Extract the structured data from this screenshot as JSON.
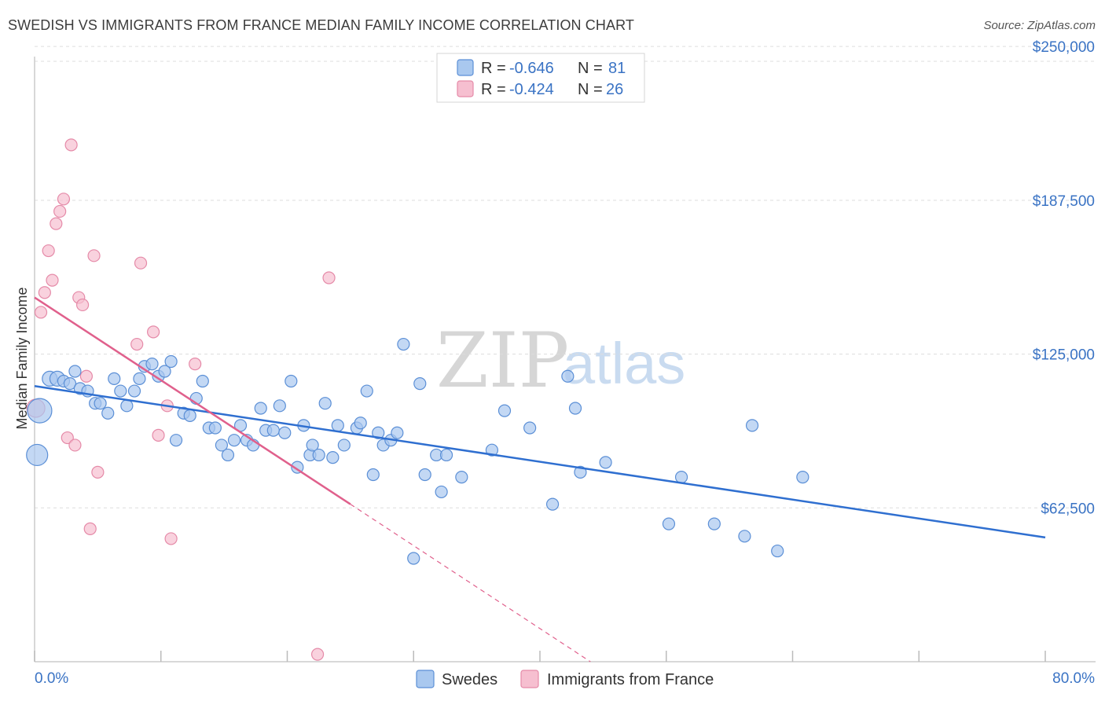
{
  "header": {
    "title": "SWEDISH VS IMMIGRANTS FROM FRANCE MEDIAN FAMILY INCOME CORRELATION CHART",
    "source": "Source: ZipAtlas.com"
  },
  "watermark": {
    "zip": "ZIP",
    "atlas": "atlas"
  },
  "colors": {
    "swedes_fill": "#a9c8ef",
    "swedes_stroke": "#5b8fd6",
    "swedes_line": "#2f6fd0",
    "france_fill": "#f6bfd0",
    "france_stroke": "#e58aa8",
    "france_line": "#e0608c",
    "accent_text": "#3a73c4",
    "grid": "#dddddd"
  },
  "legend_top": [
    {
      "r_label": "R =",
      "r_value": "-0.646",
      "n_label": "N =",
      "n_value": "81"
    },
    {
      "r_label": "R =",
      "r_value": "-0.424",
      "n_label": "N =",
      "n_value": "26"
    }
  ],
  "chart_data": {
    "type": "scatter",
    "title": "SWEDISH VS IMMIGRANTS FROM FRANCE MEDIAN FAMILY INCOME CORRELATION CHART",
    "xlabel": "",
    "ylabel": "Median Family Income",
    "xlim": [
      0,
      80
    ],
    "ylim": [
      0,
      262500
    ],
    "x_tick_labels": [
      "0.0%",
      "80.0%"
    ],
    "y_ticks": [
      62500,
      125000,
      187500,
      250000
    ],
    "y_tick_labels": [
      "$62,500",
      "$125,000",
      "$187,500",
      "$250,000"
    ],
    "grid": true,
    "legend_position": "bottom-center",
    "series": [
      {
        "name": "Swedes",
        "r": -0.646,
        "n": 81,
        "trend": {
          "x": [
            0,
            80
          ],
          "y": [
            112000,
            50500
          ]
        },
        "points": [
          [
            0.2,
            84000,
            26
          ],
          [
            0.4,
            102000,
            30
          ],
          [
            1.2,
            115000,
            18
          ],
          [
            1.8,
            115000,
            18
          ],
          [
            2.3,
            114000,
            14
          ],
          [
            2.8,
            113000,
            14
          ],
          [
            3.2,
            118000,
            14
          ],
          [
            3.6,
            111000,
            14
          ],
          [
            4.2,
            110000,
            14
          ],
          [
            4.8,
            105000,
            14
          ],
          [
            5.2,
            105000,
            14
          ],
          [
            5.8,
            101000,
            14
          ],
          [
            6.3,
            115000,
            14
          ],
          [
            6.8,
            110000,
            14
          ],
          [
            7.3,
            104000,
            14
          ],
          [
            7.9,
            110000,
            14
          ],
          [
            8.3,
            115000,
            14
          ],
          [
            8.7,
            120000,
            14
          ],
          [
            9.3,
            121000,
            14
          ],
          [
            9.8,
            116000,
            14
          ],
          [
            10.3,
            118000,
            14
          ],
          [
            10.8,
            122000,
            14
          ],
          [
            11.2,
            90000,
            14
          ],
          [
            11.8,
            101000,
            14
          ],
          [
            12.3,
            100000,
            14
          ],
          [
            12.8,
            107000,
            14
          ],
          [
            13.3,
            114000,
            14
          ],
          [
            13.8,
            95000,
            14
          ],
          [
            14.3,
            95000,
            14
          ],
          [
            14.8,
            88000,
            14
          ],
          [
            15.3,
            84000,
            14
          ],
          [
            15.8,
            90000,
            14
          ],
          [
            16.3,
            96000,
            14
          ],
          [
            16.8,
            90000,
            14
          ],
          [
            17.3,
            88000,
            14
          ],
          [
            17.9,
            103000,
            14
          ],
          [
            18.3,
            94000,
            14
          ],
          [
            18.9,
            94000,
            14
          ],
          [
            19.4,
            104000,
            14
          ],
          [
            19.8,
            93000,
            14
          ],
          [
            20.3,
            114000,
            14
          ],
          [
            20.8,
            79000,
            14
          ],
          [
            21.3,
            96000,
            14
          ],
          [
            21.8,
            84000,
            14
          ],
          [
            22.0,
            88000,
            14
          ],
          [
            22.5,
            84000,
            14
          ],
          [
            23.0,
            105000,
            14
          ],
          [
            23.6,
            83000,
            14
          ],
          [
            24.0,
            96000,
            14
          ],
          [
            24.5,
            88000,
            14
          ],
          [
            25.5,
            95000,
            14
          ],
          [
            25.8,
            97000,
            14
          ],
          [
            26.3,
            110000,
            14
          ],
          [
            26.8,
            76000,
            14
          ],
          [
            27.2,
            93000,
            14
          ],
          [
            27.6,
            88000,
            14
          ],
          [
            28.2,
            90000,
            14
          ],
          [
            28.7,
            93000,
            14
          ],
          [
            29.2,
            129000,
            14
          ],
          [
            30.0,
            42000,
            14
          ],
          [
            30.5,
            113000,
            14
          ],
          [
            30.9,
            76000,
            14
          ],
          [
            31.8,
            84000,
            14
          ],
          [
            32.2,
            69000,
            14
          ],
          [
            32.6,
            84000,
            14
          ],
          [
            33.8,
            75000,
            14
          ],
          [
            36.2,
            86000,
            14
          ],
          [
            37.2,
            102000,
            14
          ],
          [
            39.2,
            95000,
            14
          ],
          [
            41.0,
            64000,
            14
          ],
          [
            42.2,
            116000,
            14
          ],
          [
            42.8,
            103000,
            14
          ],
          [
            43.2,
            77000,
            14
          ],
          [
            45.2,
            81000,
            14
          ],
          [
            50.2,
            56000,
            14
          ],
          [
            51.2,
            75000,
            14
          ],
          [
            53.8,
            56000,
            14
          ],
          [
            56.2,
            51000,
            14
          ],
          [
            56.8,
            96000,
            14
          ],
          [
            58.8,
            45000,
            14
          ],
          [
            60.8,
            75000,
            14
          ]
        ]
      },
      {
        "name": "Immigrants from France",
        "r": -0.424,
        "n": 26,
        "trend": {
          "x": [
            0,
            25
          ],
          "y": [
            148000,
            64000
          ]
        },
        "trend_extended": {
          "x": [
            25,
            44
          ],
          "y": [
            64000,
            0
          ]
        },
        "points": [
          [
            0.1,
            103000,
            22
          ],
          [
            0.5,
            142000,
            14
          ],
          [
            0.8,
            150000,
            14
          ],
          [
            1.1,
            167000,
            14
          ],
          [
            1.4,
            155000,
            14
          ],
          [
            1.7,
            178000,
            14
          ],
          [
            2.0,
            183000,
            14
          ],
          [
            2.3,
            188000,
            14
          ],
          [
            2.6,
            91000,
            14
          ],
          [
            2.9,
            210000,
            14
          ],
          [
            3.2,
            88000,
            14
          ],
          [
            3.5,
            148000,
            14
          ],
          [
            3.8,
            145000,
            14
          ],
          [
            4.1,
            116000,
            14
          ],
          [
            4.4,
            54000,
            14
          ],
          [
            4.7,
            165000,
            14
          ],
          [
            5.0,
            77000,
            14
          ],
          [
            8.1,
            129000,
            14
          ],
          [
            8.4,
            162000,
            14
          ],
          [
            9.4,
            134000,
            14
          ],
          [
            9.8,
            92000,
            14
          ],
          [
            10.5,
            104000,
            14
          ],
          [
            10.8,
            50000,
            14
          ],
          [
            12.7,
            121000,
            14
          ],
          [
            22.4,
            3000,
            14
          ],
          [
            23.3,
            156000,
            14
          ]
        ]
      }
    ]
  },
  "legend_bottom": {
    "items": [
      "Swedes",
      "Immigrants from France"
    ]
  }
}
